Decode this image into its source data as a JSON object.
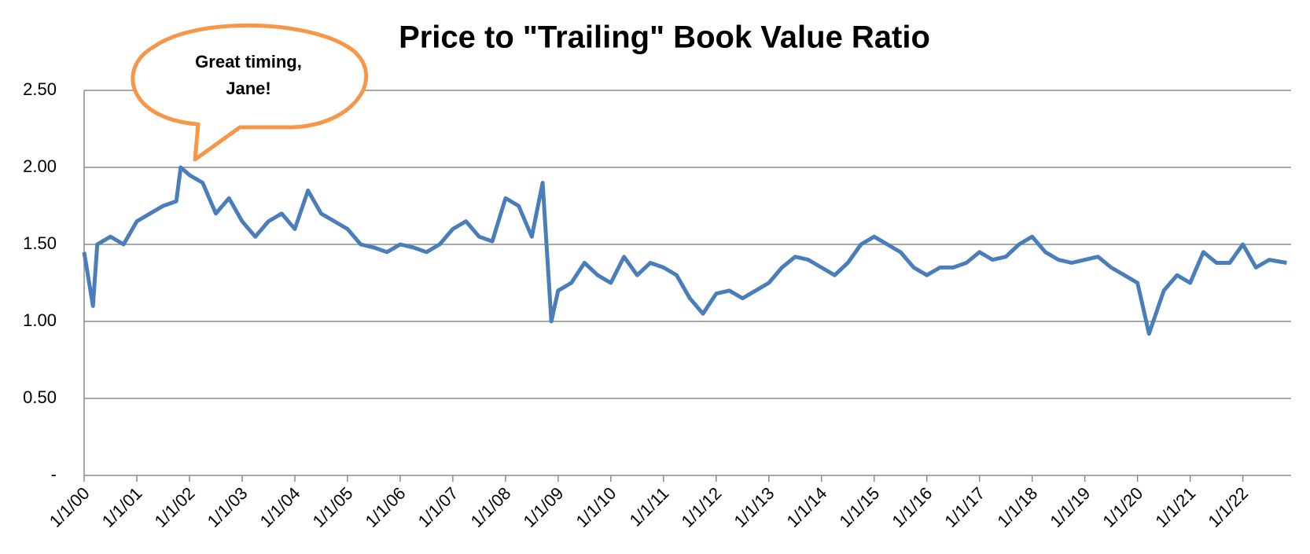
{
  "chart_data": {
    "type": "line",
    "title": "Price to \"Trailing\" Book Value Ratio",
    "annotation": [
      "Great timing,",
      "Jane!"
    ],
    "color": "#4a7ebb",
    "x": [
      "1/1/00",
      "3/1/00",
      "4/1/00",
      "7/1/00",
      "10/1/00",
      "1/1/01",
      "4/1/01",
      "7/1/01",
      "10/1/01",
      "11/1/01",
      "1/1/02",
      "4/1/02",
      "7/1/02",
      "10/1/02",
      "1/1/03",
      "4/1/03",
      "7/1/03",
      "10/1/03",
      "1/1/04",
      "4/1/04",
      "7/1/04",
      "10/1/04",
      "1/1/05",
      "4/1/05",
      "7/1/05",
      "10/1/05",
      "1/1/06",
      "4/1/06",
      "7/1/06",
      "10/1/06",
      "1/1/07",
      "4/1/07",
      "7/1/07",
      "10/1/07",
      "1/1/08",
      "4/1/08",
      "7/1/08",
      "9/15/08",
      "11/15/08",
      "1/1/09",
      "4/1/09",
      "7/1/09",
      "10/1/09",
      "1/1/10",
      "4/1/10",
      "7/1/10",
      "10/1/10",
      "1/1/11",
      "4/1/11",
      "7/1/11",
      "10/1/11",
      "1/1/12",
      "4/1/12",
      "7/1/12",
      "10/1/12",
      "1/1/13",
      "4/1/13",
      "7/1/13",
      "10/1/13",
      "1/1/14",
      "4/1/14",
      "7/1/14",
      "10/1/14",
      "1/1/15",
      "4/1/15",
      "7/1/15",
      "10/1/15",
      "1/1/16",
      "4/1/16",
      "7/1/16",
      "10/1/16",
      "1/1/17",
      "4/1/17",
      "7/1/17",
      "10/1/17",
      "1/1/18",
      "4/1/18",
      "7/1/18",
      "10/1/18",
      "1/1/19",
      "4/1/19",
      "7/1/19",
      "10/1/19",
      "1/1/20",
      "3/20/20",
      "7/1/20",
      "10/1/20",
      "1/1/21",
      "4/1/21",
      "7/1/21",
      "10/1/21",
      "1/1/22",
      "4/1/22",
      "7/1/22",
      "11/1/22"
    ],
    "values": [
      1.45,
      1.1,
      1.5,
      1.55,
      1.5,
      1.65,
      1.7,
      1.75,
      1.78,
      2.0,
      1.95,
      1.9,
      1.7,
      1.8,
      1.65,
      1.55,
      1.65,
      1.7,
      1.6,
      1.85,
      1.7,
      1.65,
      1.6,
      1.5,
      1.48,
      1.45,
      1.5,
      1.48,
      1.45,
      1.5,
      1.6,
      1.65,
      1.55,
      1.52,
      1.8,
      1.75,
      1.55,
      1.9,
      1.0,
      1.2,
      1.25,
      1.38,
      1.3,
      1.25,
      1.42,
      1.3,
      1.38,
      1.35,
      1.3,
      1.15,
      1.05,
      1.18,
      1.2,
      1.15,
      1.2,
      1.25,
      1.35,
      1.42,
      1.4,
      1.35,
      1.3,
      1.38,
      1.5,
      1.55,
      1.5,
      1.45,
      1.35,
      1.3,
      1.35,
      1.35,
      1.38,
      1.45,
      1.4,
      1.42,
      1.5,
      1.55,
      1.45,
      1.4,
      1.38,
      1.4,
      1.42,
      1.35,
      1.3,
      1.25,
      0.92,
      1.2,
      1.3,
      1.25,
      1.45,
      1.38,
      1.38,
      1.5,
      1.35,
      1.4,
      1.38
    ],
    "xlim": [
      "1/1/00",
      "12/1/22"
    ],
    "xticks": [
      "1/1/00",
      "1/1/01",
      "1/1/02",
      "1/1/03",
      "1/1/04",
      "1/1/05",
      "1/1/06",
      "1/1/07",
      "1/1/08",
      "1/1/09",
      "1/1/10",
      "1/1/11",
      "1/1/12",
      "1/1/13",
      "1/1/14",
      "1/1/15",
      "1/1/16",
      "1/1/17",
      "1/1/18",
      "1/1/19",
      "1/1/20",
      "1/1/21",
      "1/1/22"
    ],
    "ylim": [
      0,
      2.5
    ],
    "yticks": [
      {
        "value": 0,
        "label": "-"
      },
      {
        "value": 0.5,
        "label": "0.50"
      },
      {
        "value": 1,
        "label": "1.00"
      },
      {
        "value": 1.5,
        "label": "1.50"
      },
      {
        "value": 2,
        "label": "2.00"
      },
      {
        "value": 2.5,
        "label": "2.50"
      }
    ],
    "grid": true
  }
}
